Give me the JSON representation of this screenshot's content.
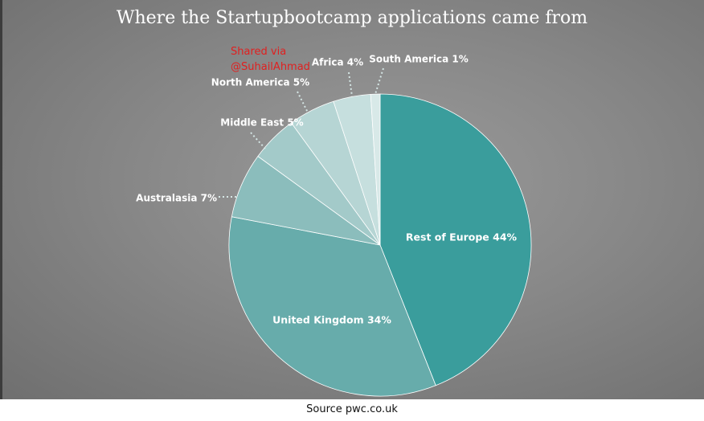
{
  "title": "Where the Startupbootcamp applications came from",
  "share_note": {
    "line1": "Shared via",
    "line2": "@SuhailAhmad"
  },
  "source": "Source pwc.co.uk",
  "chart_data": {
    "type": "pie",
    "title": "Where the Startupbootcamp applications came from",
    "slices": [
      {
        "label": "Rest of Europe 44%",
        "name": "Rest of Europe",
        "value": 44,
        "color": "#3a9d9c"
      },
      {
        "label": "United Kingdom 34%",
        "name": "United Kingdom",
        "value": 34,
        "color": "#67acab"
      },
      {
        "label": "Australasia 7%",
        "name": "Australasia",
        "value": 7,
        "color": "#8bbdbc"
      },
      {
        "label": "Middle East 5%",
        "name": "Middle East",
        "value": 5,
        "color": "#a3cac9"
      },
      {
        "label": "North America 5%",
        "name": "North America",
        "value": 5,
        "color": "#b6d5d4"
      },
      {
        "label": "Africa 4%",
        "name": "Africa",
        "value": 4,
        "color": "#c6dfde"
      },
      {
        "label": "South America 1%",
        "name": "South America",
        "value": 1,
        "color": "#d8e9e8"
      }
    ]
  }
}
